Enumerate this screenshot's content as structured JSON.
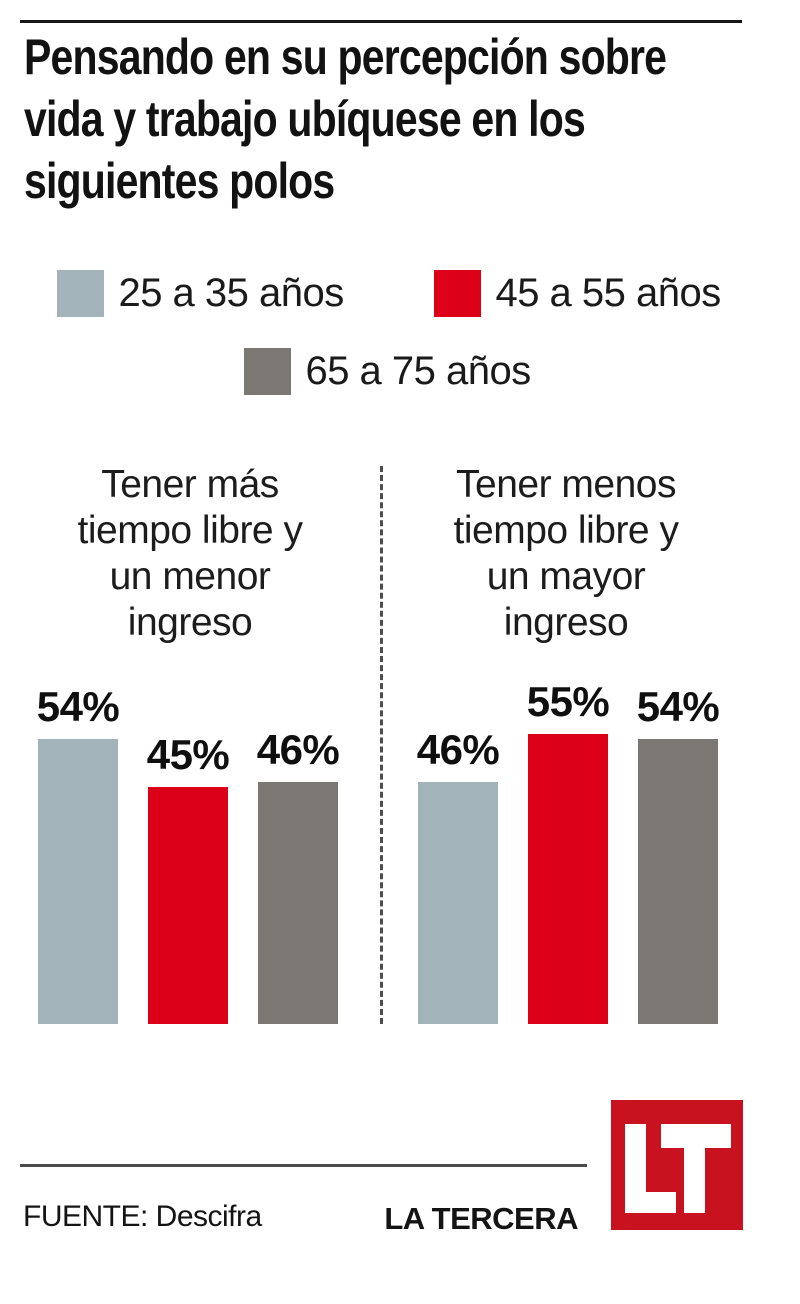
{
  "title": {
    "lines": [
      "Pensando en su percepción sobre",
      "vida y trabajo ubíquese en los",
      "siguientes polos"
    ]
  },
  "legend": {
    "items": [
      {
        "label": "25 a 35 años",
        "color": "#a2b4b9"
      },
      {
        "label": "45 a 55 años",
        "color": "#dc0019"
      },
      {
        "label": "65 a 75 años",
        "color": "#7b7873"
      }
    ]
  },
  "chart_data": {
    "type": "bar",
    "title": "Pensando en su percepción sobre vida y trabajo ubíquese en los siguientes polos",
    "categories": [
      "Tener más tiempo libre y un menor ingreso",
      "Tener menos tiempo libre y un mayor ingreso"
    ],
    "series": [
      {
        "name": "25 a 35 años",
        "color": "#a2b4b9",
        "values": [
          54,
          46
        ]
      },
      {
        "name": "45 a 55 años",
        "color": "#dc0019",
        "values": [
          45,
          55
        ]
      },
      {
        "name": "65 a 75 años",
        "color": "#7b7873",
        "values": [
          46,
          54
        ]
      }
    ],
    "value_suffix": "%",
    "ylim": [
      0,
      60
    ],
    "grid": false,
    "legend_position": "top",
    "annotation_style": "value labels above each bar"
  },
  "group_labels": [
    {
      "lines": [
        "Tener más",
        "tiempo libre y",
        "un menor",
        "ingreso"
      ]
    },
    {
      "lines": [
        "Tener menos",
        "tiempo libre y",
        "un mayor",
        "ingreso"
      ]
    }
  ],
  "footer": {
    "source": "FUENTE: Descifra",
    "brand": "LA TERCERA",
    "logo": "LT",
    "logo_color": "#c9121f"
  }
}
